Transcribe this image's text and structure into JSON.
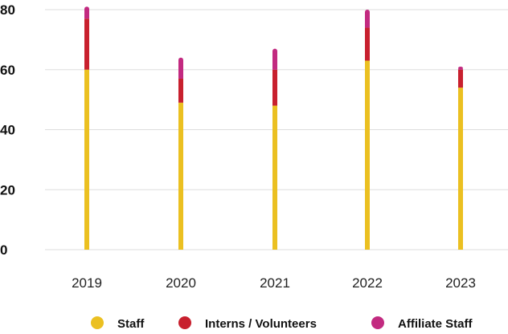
{
  "chart_data": {
    "type": "bar",
    "stacked": true,
    "categories": [
      "2019",
      "2020",
      "2021",
      "2022",
      "2023"
    ],
    "series": [
      {
        "name": "Staff",
        "color": "#EBC021",
        "values": [
          60,
          49,
          48,
          63,
          54
        ]
      },
      {
        "name": "Interns / Volunteers",
        "color": "#C8202E",
        "values": [
          17,
          8,
          12,
          11,
          6
        ]
      },
      {
        "name": "Affiliate Staff",
        "color": "#C22A80",
        "values": [
          4,
          7,
          7,
          6,
          1
        ]
      }
    ],
    "yticks": [
      0,
      20,
      40,
      60,
      80
    ],
    "ylim": [
      0,
      80
    ],
    "grid": true,
    "legend_position": "bottom"
  }
}
